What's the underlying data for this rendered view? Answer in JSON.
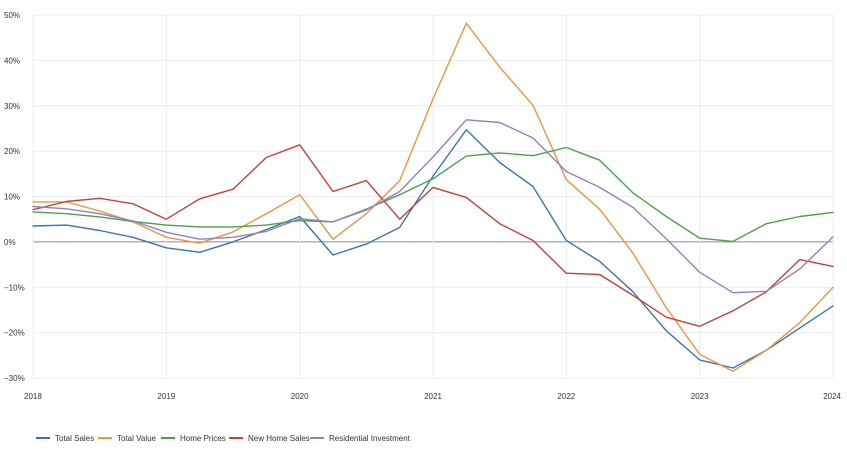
{
  "chart_data": {
    "type": "line",
    "title": "",
    "xlabel": "",
    "ylabel": "",
    "ylim": [
      -30,
      50
    ],
    "y_ticks": [
      50,
      40,
      30,
      20,
      10,
      0,
      -10,
      -20,
      -30
    ],
    "y_tick_labels": [
      "50%",
      "40%",
      "30%",
      "20%",
      "10%",
      "0%",
      "−10%",
      "−20%",
      "−30%"
    ],
    "x_ticks": [
      2018,
      2019,
      2020,
      2021,
      2022,
      2023,
      2024
    ],
    "x_tick_labels": [
      "2018",
      "2019",
      "2020",
      "2021",
      "2022",
      "2023",
      "2024"
    ],
    "xlim": [
      2018,
      2024
    ],
    "grid": true,
    "legend_position": "bottom-left",
    "x": [
      2018,
      2018.25,
      2018.5,
      2018.75,
      2019,
      2019.25,
      2019.5,
      2019.75,
      2020,
      2020.25,
      2020.5,
      2020.75,
      2021,
      2021.25,
      2021.5,
      2021.75,
      2022,
      2022.25,
      2022.5,
      2022.75,
      2023,
      2023.25,
      2023.5,
      2023.75,
      2024
    ],
    "series": [
      {
        "name": "Total Sales",
        "color": "#3a76ae",
        "values": [
          3.5,
          3.7,
          2.5,
          1.0,
          -1.3,
          -2.3,
          0,
          2.7,
          5.6,
          -2.9,
          -0.5,
          3.2,
          14.5,
          24.7,
          17.5,
          12.2,
          0.3,
          -4.3,
          -11,
          -19.6,
          -26,
          -27.8,
          -23.9,
          -19,
          -14.1
        ]
      },
      {
        "name": "Total Value",
        "color": "#ef9441",
        "values": [
          8.8,
          8.8,
          6.8,
          4.4,
          1.0,
          -0.3,
          2.2,
          6.2,
          10.4,
          0.6,
          6.2,
          13.5,
          31.5,
          48.2,
          38.5,
          30.1,
          13.7,
          7.2,
          -2.5,
          -14.5,
          -24.8,
          -28.5,
          -23.9,
          -17.8,
          -10
        ]
      },
      {
        "name": "Home Prices",
        "color": "#4ea04a",
        "values": [
          6.6,
          6.2,
          5.5,
          4.5,
          3.7,
          3.3,
          3.3,
          3.7,
          4.7,
          4.4,
          7.2,
          10.4,
          13.9,
          18.9,
          19.6,
          19.0,
          20.8,
          18.0,
          10.8,
          5.6,
          0.8,
          0.1,
          4.0,
          5.6,
          6.5
        ]
      },
      {
        "name": "New Home Sales",
        "color": "#c4403b",
        "values": [
          7.1,
          8.9,
          9.6,
          8.4,
          5.0,
          9.5,
          11.6,
          18.6,
          21.4,
          11.1,
          13.5,
          5.0,
          12.0,
          9.8,
          4.0,
          0.3,
          -6.9,
          -7.2,
          -11.8,
          -16.6,
          -18.6,
          -15.2,
          -11.0,
          -3.9,
          -5.4
        ]
      },
      {
        "name": "Residential Investment",
        "color": "#9181c1",
        "values": [
          7.8,
          7.3,
          6.2,
          4.6,
          2.1,
          0.6,
          1.0,
          2.3,
          5.1,
          4.4,
          7.0,
          11.1,
          18.7,
          26.9,
          26.3,
          22.9,
          15.5,
          12.0,
          7.6,
          0.7,
          -6.7,
          -11.2,
          -10.9,
          -6.0,
          1.1
        ]
      }
    ]
  }
}
